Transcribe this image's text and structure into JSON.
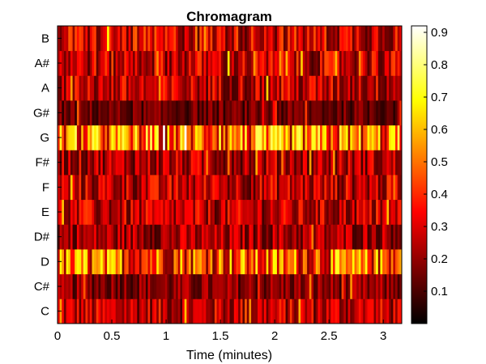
{
  "chart_data": {
    "type": "heatmap",
    "title": "Chromagram",
    "xlabel": "Time (minutes)",
    "ylabel": "",
    "xlim": [
      0,
      3.17
    ],
    "x_ticks": [
      "0",
      "0.5",
      "1",
      "1.5",
      "2",
      "2.5",
      "3"
    ],
    "pitch_classes": [
      "C",
      "C#",
      "D",
      "D#",
      "E",
      "F",
      "F#",
      "G",
      "G#",
      "A",
      "A#",
      "B"
    ],
    "colormap": "hot",
    "clim": [
      0,
      0.92
    ],
    "colorbar_ticks": [
      "0.1",
      "0.2",
      "0.3",
      "0.4",
      "0.5",
      "0.6",
      "0.7",
      "0.8",
      "0.9"
    ],
    "colors": {
      "colormap_low": "#000000",
      "colormap_mid_red": "#ff0000",
      "colormap_mid_yellow": "#ffff00",
      "colormap_high": "#ffffff"
    },
    "grid": false,
    "frames_per_row": 160,
    "row_mean_energy": {
      "C": 0.26,
      "C#": 0.18,
      "D": 0.44,
      "D#": 0.22,
      "E": 0.25,
      "F": 0.26,
      "F#": 0.24,
      "G": 0.47,
      "G#": 0.14,
      "A": 0.26,
      "A#": 0.27,
      "B": 0.29
    }
  }
}
